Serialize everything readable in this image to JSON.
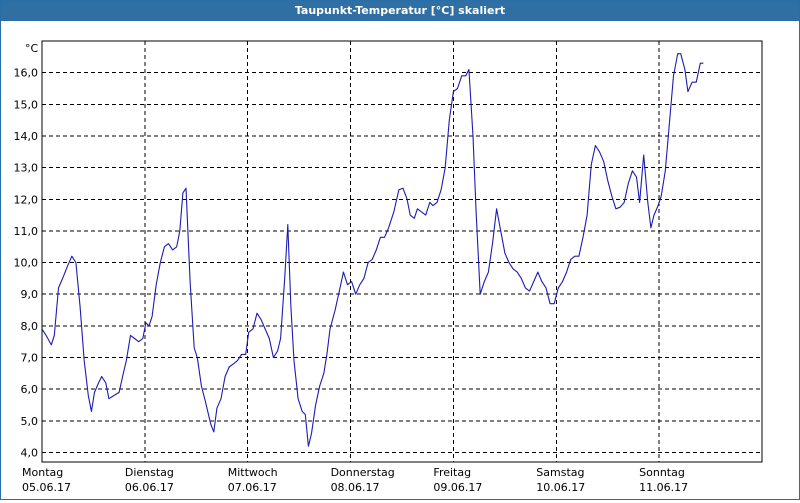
{
  "title": "Taupunkt-Temperatur [°C] skaliert",
  "colors": {
    "title_bg": "#2f6fa3",
    "title_text": "#ffffff",
    "line": "#1c1cb0",
    "grid": "#000000"
  },
  "chart_data": {
    "type": "line",
    "title": "Taupunkt-Temperatur [°C] skaliert",
    "y_unit_label": "°C",
    "ylim": [
      3.7,
      17.0
    ],
    "y_ticks": [
      4.0,
      5.0,
      6.0,
      7.0,
      8.0,
      9.0,
      10.0,
      11.0,
      12.0,
      13.0,
      14.0,
      15.0,
      16.0
    ],
    "y_tick_labels": [
      "4,0",
      "5,0",
      "6,0",
      "7,0",
      "8,0",
      "9,0",
      "10,0",
      "11,0",
      "12,0",
      "13,0",
      "14,0",
      "15,0",
      "16,0"
    ],
    "x_range_days": [
      0,
      7
    ],
    "x_day_labels": [
      {
        "day": "Montag",
        "date": "05.06.17"
      },
      {
        "day": "Dienstag",
        "date": "06.06.17"
      },
      {
        "day": "Mittwoch",
        "date": "07.06.17"
      },
      {
        "day": "Donnerstag",
        "date": "08.06.17"
      },
      {
        "day": "Freitag",
        "date": "09.06.17"
      },
      {
        "day": "Samstag",
        "date": "10.06.17"
      },
      {
        "day": "Sonntag",
        "date": "11.06.17"
      }
    ],
    "grid": true,
    "series": [
      {
        "values": [
          [
            0.0,
            7.9
          ],
          [
            0.04,
            7.7
          ],
          [
            0.09,
            7.4
          ],
          [
            0.12,
            7.7
          ],
          [
            0.16,
            9.2
          ],
          [
            0.2,
            9.5
          ],
          [
            0.25,
            9.9
          ],
          [
            0.29,
            10.2
          ],
          [
            0.33,
            10.0
          ],
          [
            0.37,
            8.6
          ],
          [
            0.41,
            6.9
          ],
          [
            0.45,
            5.8
          ],
          [
            0.48,
            5.3
          ],
          [
            0.51,
            5.9
          ],
          [
            0.55,
            6.2
          ],
          [
            0.58,
            6.4
          ],
          [
            0.62,
            6.2
          ],
          [
            0.65,
            5.7
          ],
          [
            0.7,
            5.8
          ],
          [
            0.75,
            5.9
          ],
          [
            0.79,
            6.5
          ],
          [
            0.82,
            6.9
          ],
          [
            0.86,
            7.7
          ],
          [
            0.9,
            7.6
          ],
          [
            0.94,
            7.5
          ],
          [
            0.98,
            7.6
          ],
          [
            1.01,
            8.1
          ],
          [
            1.04,
            8.0
          ],
          [
            1.07,
            8.3
          ],
          [
            1.11,
            9.3
          ],
          [
            1.15,
            10.0
          ],
          [
            1.19,
            10.5
          ],
          [
            1.23,
            10.6
          ],
          [
            1.27,
            10.4
          ],
          [
            1.31,
            10.5
          ],
          [
            1.34,
            11.0
          ],
          [
            1.37,
            12.2
          ],
          [
            1.4,
            12.35
          ],
          [
            1.44,
            9.4
          ],
          [
            1.48,
            7.3
          ],
          [
            1.51,
            7.0
          ],
          [
            1.55,
            6.1
          ],
          [
            1.59,
            5.6
          ],
          [
            1.64,
            4.9
          ],
          [
            1.67,
            4.65
          ],
          [
            1.7,
            5.4
          ],
          [
            1.74,
            5.7
          ],
          [
            1.78,
            6.4
          ],
          [
            1.82,
            6.7
          ],
          [
            1.86,
            6.8
          ],
          [
            1.9,
            6.9
          ],
          [
            1.94,
            7.1
          ],
          [
            1.98,
            7.1
          ],
          [
            2.01,
            7.8
          ],
          [
            2.05,
            7.9
          ],
          [
            2.09,
            8.4
          ],
          [
            2.13,
            8.2
          ],
          [
            2.17,
            7.9
          ],
          [
            2.21,
            7.6
          ],
          [
            2.25,
            7.0
          ],
          [
            2.29,
            7.2
          ],
          [
            2.32,
            7.6
          ],
          [
            2.36,
            9.5
          ],
          [
            2.39,
            11.2
          ],
          [
            2.42,
            8.6
          ],
          [
            2.45,
            6.9
          ],
          [
            2.49,
            5.7
          ],
          [
            2.53,
            5.3
          ],
          [
            2.56,
            5.2
          ],
          [
            2.59,
            4.2
          ],
          [
            2.62,
            4.6
          ],
          [
            2.66,
            5.5
          ],
          [
            2.7,
            6.1
          ],
          [
            2.74,
            6.5
          ],
          [
            2.77,
            7.1
          ],
          [
            2.8,
            7.9
          ],
          [
            2.85,
            8.5
          ],
          [
            2.89,
            9.1
          ],
          [
            2.93,
            9.7
          ],
          [
            2.97,
            9.3
          ],
          [
            3.01,
            9.4
          ],
          [
            3.05,
            9.0
          ],
          [
            3.09,
            9.3
          ],
          [
            3.13,
            9.5
          ],
          [
            3.17,
            10.0
          ],
          [
            3.21,
            10.1
          ],
          [
            3.25,
            10.4
          ],
          [
            3.29,
            10.8
          ],
          [
            3.33,
            10.8
          ],
          [
            3.37,
            11.1
          ],
          [
            3.42,
            11.6
          ],
          [
            3.47,
            12.3
          ],
          [
            3.51,
            12.35
          ],
          [
            3.55,
            12.0
          ],
          [
            3.58,
            11.5
          ],
          [
            3.62,
            11.4
          ],
          [
            3.65,
            11.7
          ],
          [
            3.69,
            11.6
          ],
          [
            3.73,
            11.5
          ],
          [
            3.77,
            11.9
          ],
          [
            3.8,
            11.8
          ],
          [
            3.84,
            11.9
          ],
          [
            3.88,
            12.3
          ],
          [
            3.92,
            13.0
          ],
          [
            3.96,
            14.5
          ],
          [
            4.0,
            15.4
          ],
          [
            4.04,
            15.5
          ],
          [
            4.08,
            15.9
          ],
          [
            4.12,
            15.9
          ],
          [
            4.15,
            16.1
          ],
          [
            4.19,
            14.0
          ],
          [
            4.22,
            11.6
          ],
          [
            4.26,
            9.0
          ],
          [
            4.3,
            9.4
          ],
          [
            4.34,
            9.7
          ],
          [
            4.38,
            10.6
          ],
          [
            4.42,
            11.7
          ],
          [
            4.46,
            11.0
          ],
          [
            4.5,
            10.3
          ],
          [
            4.54,
            10.0
          ],
          [
            4.58,
            9.8
          ],
          [
            4.62,
            9.7
          ],
          [
            4.66,
            9.5
          ],
          [
            4.7,
            9.2
          ],
          [
            4.74,
            9.1
          ],
          [
            4.78,
            9.4
          ],
          [
            4.82,
            9.7
          ],
          [
            4.86,
            9.4
          ],
          [
            4.9,
            9.2
          ],
          [
            4.94,
            8.7
          ],
          [
            4.98,
            8.7
          ],
          [
            5.02,
            9.2
          ],
          [
            5.06,
            9.4
          ],
          [
            5.1,
            9.7
          ],
          [
            5.14,
            10.1
          ],
          [
            5.18,
            10.2
          ],
          [
            5.22,
            10.2
          ],
          [
            5.26,
            10.8
          ],
          [
            5.3,
            11.5
          ],
          [
            5.34,
            13.1
          ],
          [
            5.38,
            13.7
          ],
          [
            5.42,
            13.5
          ],
          [
            5.46,
            13.2
          ],
          [
            5.5,
            12.6
          ],
          [
            5.54,
            12.1
          ],
          [
            5.58,
            11.7
          ],
          [
            5.62,
            11.75
          ],
          [
            5.66,
            11.9
          ],
          [
            5.7,
            12.5
          ],
          [
            5.74,
            12.9
          ],
          [
            5.78,
            12.7
          ],
          [
            5.81,
            11.9
          ],
          [
            5.85,
            13.4
          ],
          [
            5.89,
            11.9
          ],
          [
            5.92,
            11.1
          ],
          [
            5.95,
            11.5
          ],
          [
            5.99,
            11.8
          ],
          [
            6.02,
            12.1
          ],
          [
            6.06,
            12.9
          ],
          [
            6.1,
            14.4
          ],
          [
            6.14,
            15.9
          ],
          [
            6.18,
            16.6
          ],
          [
            6.21,
            16.6
          ],
          [
            6.25,
            16.1
          ],
          [
            6.28,
            15.4
          ],
          [
            6.32,
            15.7
          ],
          [
            6.36,
            15.7
          ],
          [
            6.4,
            16.3
          ],
          [
            6.43,
            16.3
          ]
        ]
      }
    ]
  }
}
